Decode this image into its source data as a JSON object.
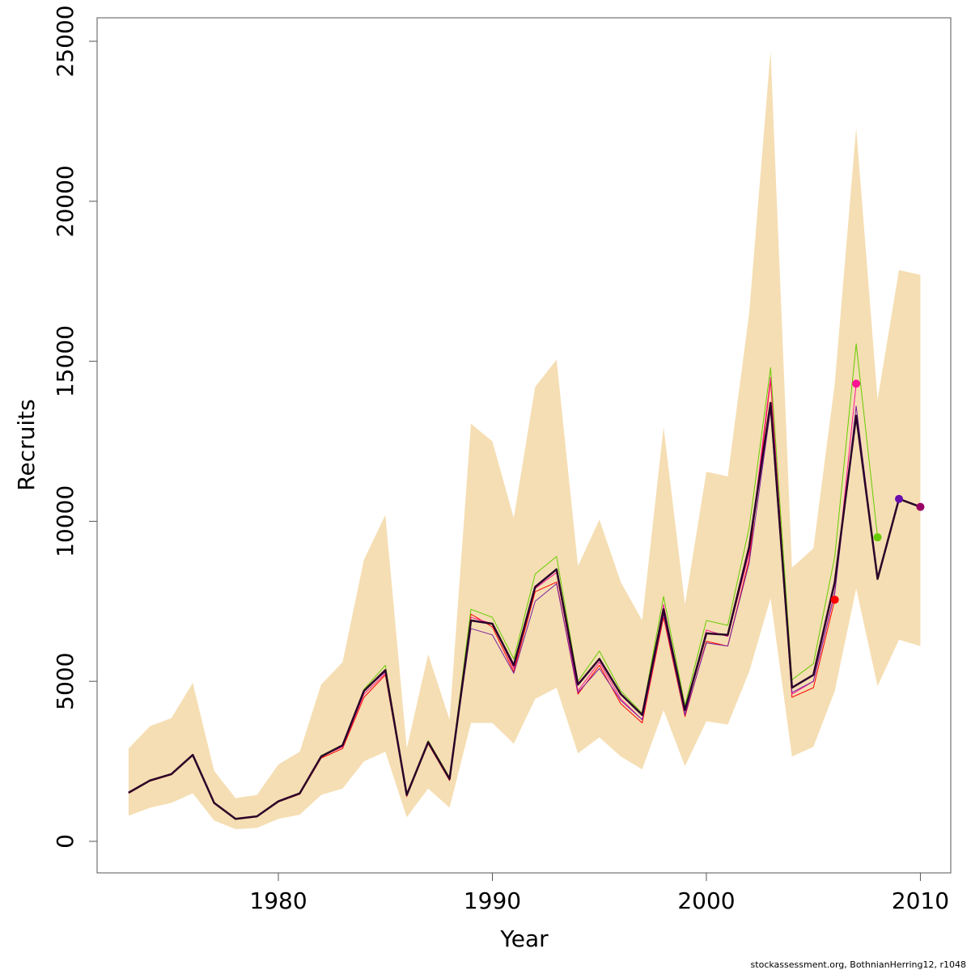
{
  "chart_data": {
    "type": "line",
    "xlabel": "Year",
    "ylabel": "Recruits",
    "footnote": "stockassessment.org, BothnianHerring12, r1048",
    "x": [
      1973,
      1974,
      1975,
      1976,
      1977,
      1978,
      1979,
      1980,
      1981,
      1982,
      1983,
      1984,
      1985,
      1986,
      1987,
      1988,
      1989,
      1990,
      1991,
      1992,
      1993,
      1994,
      1995,
      1996,
      1997,
      1998,
      1999,
      2000,
      2001,
      2002,
      2003,
      2004,
      2005,
      2006,
      2007,
      2008,
      2009,
      2010
    ],
    "xlim": [
      1971.53,
      2011.42
    ],
    "xticks": [
      1980,
      1990,
      2000,
      2010
    ],
    "ylim": [
      -986,
      25733
    ],
    "yticks": [
      0,
      5000,
      10000,
      15000,
      20000,
      25000
    ],
    "band": {
      "color": "#f5deb3",
      "low": [
        800,
        1050,
        1200,
        1500,
        650,
        380,
        420,
        700,
        830,
        1450,
        1650,
        2500,
        2800,
        750,
        1650,
        1050,
        3700,
        3700,
        3050,
        4450,
        4800,
        2750,
        3250,
        2650,
        2250,
        4100,
        2350,
        3750,
        3650,
        5300,
        7600,
        2650,
        2950,
        4700,
        7900,
        4850,
        6300,
        6100
      ],
      "high": [
        2900,
        3600,
        3850,
        4950,
        2200,
        1350,
        1450,
        2400,
        2800,
        4900,
        5600,
        8800,
        10200,
        2900,
        5850,
        3800,
        13050,
        12500,
        10100,
        14200,
        15050,
        8600,
        10050,
        8100,
        6900,
        12950,
        7400,
        11550,
        11400,
        16500,
        24700,
        8550,
        9150,
        14300,
        22300,
        13800,
        17850,
        17700
      ]
    },
    "series": [
      {
        "color": "#ff0000",
        "width": 1,
        "dot": "#ff0000",
        "values": [
          1500,
          1880,
          2080,
          2680,
          1180,
          690,
          770,
          1230,
          1470,
          2600,
          2900,
          4500,
          5200,
          1400,
          3050,
          1900,
          7100,
          6700,
          5300,
          7800,
          8100,
          4600,
          5500,
          4300,
          3700,
          7000,
          3900,
          6250,
          6100,
          8800,
          14400,
          4500,
          4800,
          7550,
          null,
          null,
          null,
          null
        ]
      },
      {
        "color": "#ff1493",
        "width": 1,
        "dot": "#ff1493",
        "values": [
          1520,
          1900,
          2100,
          2700,
          1200,
          700,
          780,
          1250,
          1500,
          2650,
          2950,
          4600,
          5250,
          1450,
          3100,
          1950,
          7000,
          6800,
          5400,
          7900,
          8400,
          4700,
          5600,
          4450,
          3800,
          7400,
          3950,
          6600,
          6400,
          9000,
          14500,
          4600,
          5000,
          7800,
          14300,
          null,
          null,
          null
        ]
      },
      {
        "color": "#66cc00",
        "width": 1,
        "dot": "#66cc00",
        "values": [
          1530,
          1920,
          2110,
          2720,
          1210,
          710,
          790,
          1260,
          1510,
          2680,
          3020,
          4750,
          5500,
          1480,
          3150,
          2000,
          7250,
          7000,
          5700,
          8350,
          8900,
          5000,
          5950,
          4700,
          4000,
          7650,
          4250,
          6900,
          6750,
          9800,
          14800,
          5050,
          5550,
          8900,
          15550,
          9500,
          null,
          null
        ]
      },
      {
        "color": "#7a1fa0",
        "width": 1,
        "dot": "#6a0dad",
        "values": [
          1520,
          1900,
          2100,
          2700,
          1200,
          700,
          780,
          1250,
          1500,
          2650,
          3000,
          4700,
          5300,
          1450,
          3100,
          1950,
          6650,
          6450,
          5250,
          7500,
          8050,
          4650,
          5400,
          4400,
          3800,
          7100,
          3950,
          6200,
          6100,
          8700,
          13500,
          4650,
          5000,
          7750,
          13600,
          8200,
          10700,
          null
        ]
      },
      {
        "color": "#2a0028",
        "width": 2.5,
        "dot": "#990066",
        "values": [
          1520,
          1900,
          2100,
          2700,
          1200,
          700,
          780,
          1250,
          1500,
          2650,
          3000,
          4700,
          5350,
          1450,
          3100,
          1950,
          6900,
          6800,
          5500,
          7950,
          8500,
          4900,
          5700,
          4600,
          3950,
          7250,
          4100,
          6500,
          6450,
          9200,
          13700,
          4800,
          5200,
          8100,
          13300,
          8200,
          10700,
          10450
        ]
      }
    ]
  }
}
